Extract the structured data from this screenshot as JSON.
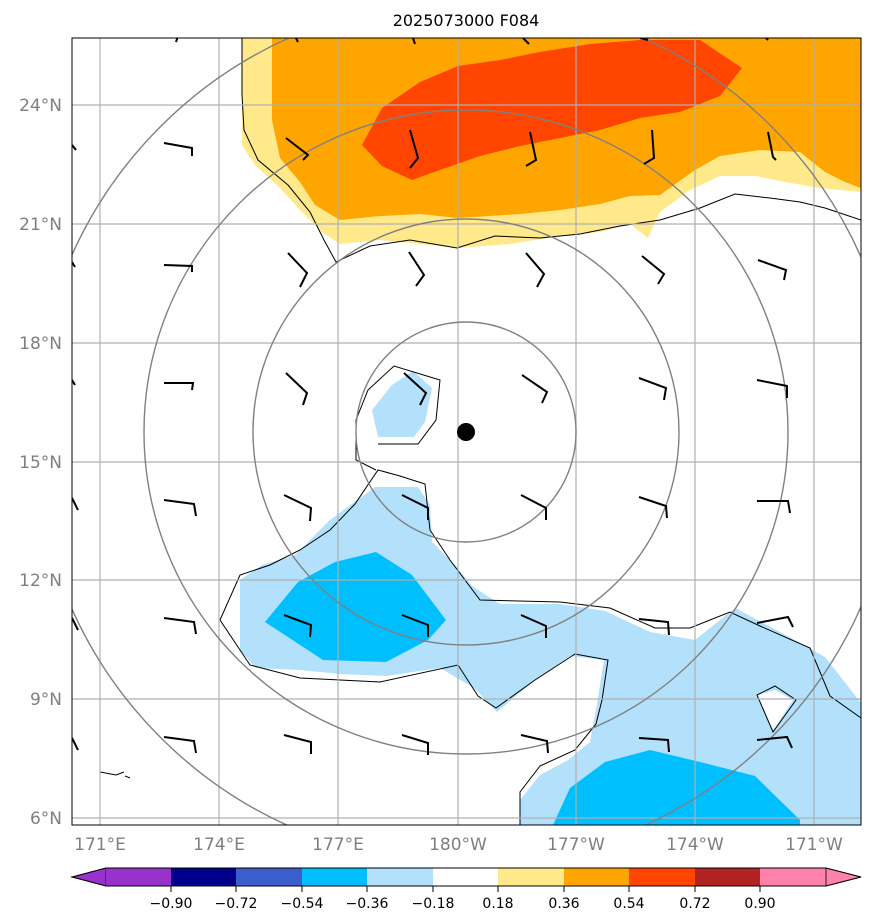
{
  "title": "2025073000 F084",
  "map": {
    "lat_labels": [
      "6°N",
      "9°N",
      "12°N",
      "15°N",
      "18°N",
      "21°N",
      "24°N"
    ],
    "lon_labels": [
      "171°E",
      "174°E",
      "177°E",
      "180°W",
      "177°W",
      "174°W",
      "171°W"
    ],
    "storm_center": "15.7°N 179.8°W"
  },
  "colorbar": {
    "labels": [
      "−0.90",
      "−0.72",
      "−0.54",
      "−0.36",
      "−0.18",
      "0.18",
      "0.36",
      "0.54",
      "0.72",
      "0.90"
    ],
    "colors": [
      "#9932cc",
      "#00008b",
      "#3a5fcd",
      "#00bfff",
      "#b0e0fa",
      "#ffffff",
      "#ffe98a",
      "#ffa500",
      "#ff4500",
      "#b22222",
      "#ff82ab"
    ]
  },
  "fill_colors": {
    "light_blue": "#b3e0fb",
    "blue": "#00bfff",
    "light_yellow": "#ffe98a",
    "orange": "#ffa500",
    "red_orange": "#ff4500"
  }
}
